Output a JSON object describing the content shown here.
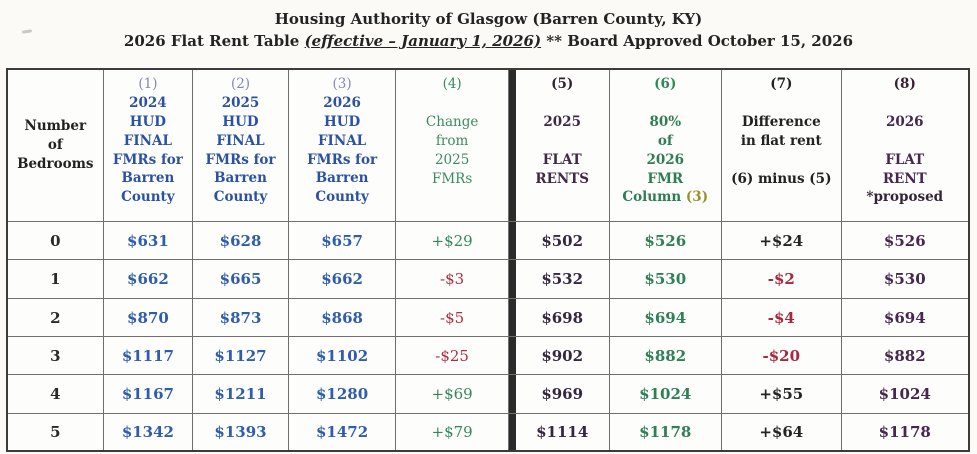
{
  "title": {
    "line1": "Housing Authority of Glasgow (Barren County, KY)",
    "line2_prefix": "2026 Flat Rent Table ",
    "line2_emphasis": "(effective – January 1, 2026)",
    "line2_suffix": " ** Board Approved October 15, 2026"
  },
  "colors": {
    "fmr_blue": "#2f5dab",
    "header_number_periwinkle": "#8286c4",
    "change_green": "#2f8057",
    "change_red": "#ab2f42",
    "flat_rent_purple": "#46284e",
    "olive_reference": "#96932e",
    "divider_black": "#2b2b2b"
  },
  "table": {
    "headers": {
      "bedrooms": "Number\nof\nBedrooms",
      "col1": {
        "num": "(1)",
        "body": "2024\nHUD\nFINAL\nFMRs for\nBarren\nCounty"
      },
      "col2": {
        "num": "(2)",
        "body": "2025\nHUD\nFINAL\nFMRs for\nBarren\nCounty"
      },
      "col3": {
        "num": "(3)",
        "body": "2026\nHUD\nFINAL\nFMRs for\nBarren\nCounty"
      },
      "col4": {
        "num": "(4)",
        "body": "Change\nfrom\n2025\nFMRs"
      },
      "col5": {
        "num": "(5)",
        "body": "2025\n\nFLAT\nRENTS"
      },
      "col6": {
        "num": "(6)",
        "body": "80%\nof\n2026\nFMR",
        "column_label": "Column ",
        "column_ref": "(3)"
      },
      "col7": {
        "num": "(7)",
        "body": "Difference\nin flat rent\n\n(6) minus (5)"
      },
      "col8": {
        "num": "(8)",
        "body": "2026\n\nFLAT\nRENT",
        "proposed": "*proposed"
      }
    },
    "rows": [
      {
        "bed": "0",
        "fmr2024": "$631",
        "fmr2025": "$628",
        "fmr2026": "$657",
        "change": "+$29",
        "flat2025": "$502",
        "pct80": "$526",
        "diff": "+$24",
        "proposed": "$526"
      },
      {
        "bed": "1",
        "fmr2024": "$662",
        "fmr2025": "$665",
        "fmr2026": "$662",
        "change": "-$3",
        "flat2025": "$532",
        "pct80": "$530",
        "diff": "-$2",
        "proposed": "$530"
      },
      {
        "bed": "2",
        "fmr2024": "$870",
        "fmr2025": "$873",
        "fmr2026": "$868",
        "change": "-$5",
        "flat2025": "$698",
        "pct80": "$694",
        "diff": "-$4",
        "proposed": "$694"
      },
      {
        "bed": "3",
        "fmr2024": "$1117",
        "fmr2025": "$1127",
        "fmr2026": "$1102",
        "change": "-$25",
        "flat2025": "$902",
        "pct80": "$882",
        "diff": "-$20",
        "proposed": "$882"
      },
      {
        "bed": "4",
        "fmr2024": "$1167",
        "fmr2025": "$1211",
        "fmr2026": "$1280",
        "change": "+$69",
        "flat2025": "$969",
        "pct80": "$1024",
        "diff": "+$55",
        "proposed": "$1024"
      },
      {
        "bed": "5",
        "fmr2024": "$1342",
        "fmr2025": "$1393",
        "fmr2026": "$1472",
        "change": "+$79",
        "flat2025": "$1114",
        "pct80": "$1178",
        "diff": "+$64",
        "proposed": "$1178"
      }
    ]
  }
}
